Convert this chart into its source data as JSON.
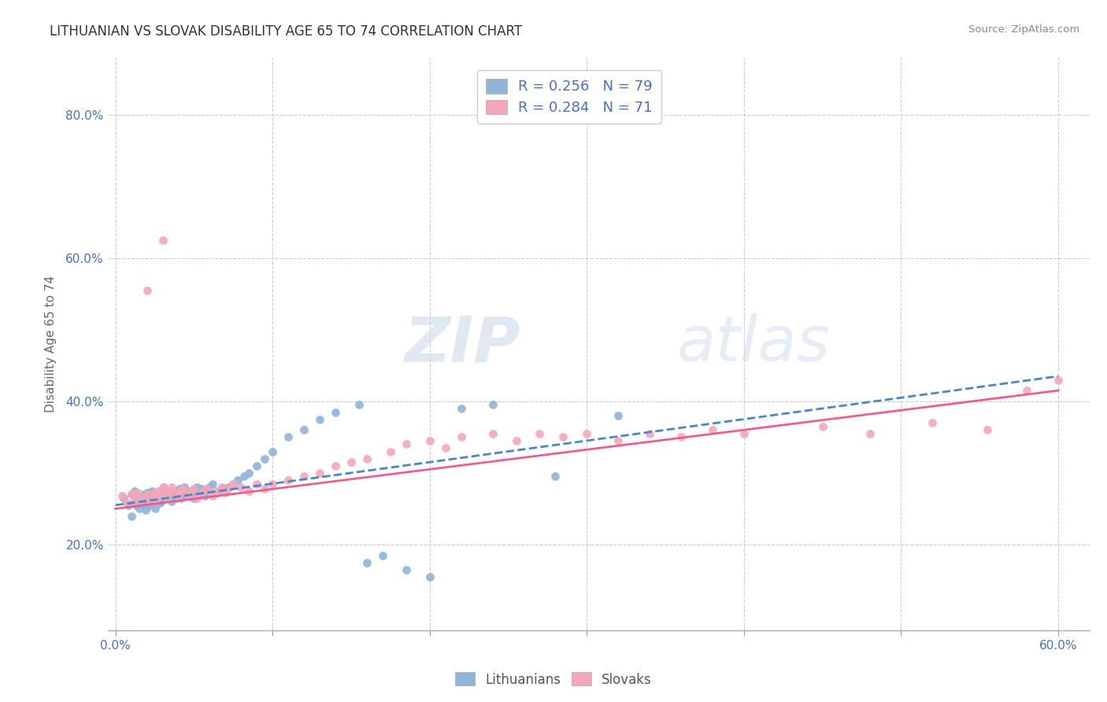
{
  "title": "LITHUANIAN VS SLOVAK DISABILITY AGE 65 TO 74 CORRELATION CHART",
  "source": "Source: ZipAtlas.com",
  "xlabel": "",
  "ylabel": "Disability Age 65 to 74",
  "xlim": [
    -0.005,
    0.62
  ],
  "ylim": [
    0.08,
    0.88
  ],
  "xtick_labels": [
    "0.0%",
    "",
    "",
    "",
    "",
    "",
    "60.0%"
  ],
  "xtick_vals": [
    0.0,
    0.1,
    0.2,
    0.3,
    0.4,
    0.5,
    0.6
  ],
  "ytick_labels": [
    "20.0%",
    "40.0%",
    "60.0%",
    "80.0%"
  ],
  "ytick_vals": [
    0.2,
    0.4,
    0.6,
    0.8
  ],
  "blue_color": "#91b4d9",
  "pink_color": "#f4a7b9",
  "blue_line_color": "#4a86c8",
  "pink_line_color": "#e86090",
  "text_color": "#4472c4",
  "watermark_zip": "ZIP",
  "watermark_atlas": "atlas",
  "blue_trendline": [
    0.0,
    0.255,
    0.6,
    0.435
  ],
  "pink_trendline": [
    0.0,
    0.25,
    0.6,
    0.415
  ],
  "blue_scatter_x": [
    0.005,
    0.008,
    0.01,
    0.01,
    0.012,
    0.012,
    0.013,
    0.015,
    0.015,
    0.016,
    0.018,
    0.018,
    0.019,
    0.019,
    0.02,
    0.02,
    0.021,
    0.022,
    0.022,
    0.023,
    0.023,
    0.024,
    0.025,
    0.025,
    0.026,
    0.027,
    0.028,
    0.028,
    0.029,
    0.03,
    0.031,
    0.032,
    0.033,
    0.034,
    0.035,
    0.036,
    0.037,
    0.038,
    0.039,
    0.04,
    0.041,
    0.042,
    0.043,
    0.044,
    0.045,
    0.046,
    0.048,
    0.05,
    0.052,
    0.053,
    0.055,
    0.057,
    0.058,
    0.06,
    0.062,
    0.065,
    0.068,
    0.07,
    0.072,
    0.075,
    0.078,
    0.082,
    0.085,
    0.09,
    0.095,
    0.1,
    0.11,
    0.12,
    0.13,
    0.14,
    0.155,
    0.16,
    0.17,
    0.185,
    0.2,
    0.22,
    0.24,
    0.28,
    0.32
  ],
  "blue_scatter_y": [
    0.265,
    0.255,
    0.27,
    0.24,
    0.26,
    0.275,
    0.255,
    0.268,
    0.25,
    0.26,
    0.27,
    0.255,
    0.265,
    0.248,
    0.272,
    0.258,
    0.265,
    0.27,
    0.255,
    0.26,
    0.275,
    0.26,
    0.268,
    0.25,
    0.272,
    0.265,
    0.258,
    0.275,
    0.26,
    0.268,
    0.28,
    0.27,
    0.265,
    0.275,
    0.268,
    0.26,
    0.27,
    0.275,
    0.265,
    0.272,
    0.278,
    0.265,
    0.27,
    0.28,
    0.268,
    0.275,
    0.272,
    0.265,
    0.28,
    0.27,
    0.278,
    0.268,
    0.275,
    0.28,
    0.285,
    0.272,
    0.278,
    0.275,
    0.28,
    0.285,
    0.29,
    0.295,
    0.3,
    0.31,
    0.32,
    0.33,
    0.35,
    0.36,
    0.375,
    0.385,
    0.395,
    0.175,
    0.185,
    0.165,
    0.155,
    0.39,
    0.395,
    0.295,
    0.38
  ],
  "pink_scatter_x": [
    0.004,
    0.007,
    0.01,
    0.012,
    0.014,
    0.016,
    0.018,
    0.02,
    0.022,
    0.024,
    0.025,
    0.026,
    0.027,
    0.028,
    0.03,
    0.032,
    0.033,
    0.035,
    0.036,
    0.038,
    0.04,
    0.042,
    0.043,
    0.045,
    0.047,
    0.048,
    0.05,
    0.052,
    0.055,
    0.058,
    0.06,
    0.062,
    0.065,
    0.068,
    0.07,
    0.072,
    0.075,
    0.08,
    0.085,
    0.09,
    0.095,
    0.1,
    0.11,
    0.12,
    0.13,
    0.14,
    0.15,
    0.16,
    0.175,
    0.185,
    0.2,
    0.21,
    0.22,
    0.24,
    0.255,
    0.27,
    0.285,
    0.3,
    0.32,
    0.34,
    0.36,
    0.38,
    0.4,
    0.45,
    0.48,
    0.52,
    0.555,
    0.58,
    0.6,
    0.02,
    0.03
  ],
  "pink_scatter_y": [
    0.268,
    0.258,
    0.27,
    0.26,
    0.272,
    0.262,
    0.265,
    0.27,
    0.26,
    0.268,
    0.272,
    0.265,
    0.275,
    0.268,
    0.28,
    0.27,
    0.265,
    0.275,
    0.28,
    0.272,
    0.268,
    0.275,
    0.278,
    0.272,
    0.268,
    0.275,
    0.278,
    0.265,
    0.272,
    0.278,
    0.275,
    0.268,
    0.275,
    0.28,
    0.272,
    0.278,
    0.285,
    0.28,
    0.275,
    0.285,
    0.278,
    0.285,
    0.29,
    0.295,
    0.3,
    0.31,
    0.315,
    0.32,
    0.33,
    0.34,
    0.345,
    0.335,
    0.35,
    0.355,
    0.345,
    0.355,
    0.35,
    0.355,
    0.345,
    0.355,
    0.35,
    0.36,
    0.355,
    0.365,
    0.355,
    0.37,
    0.36,
    0.415,
    0.43,
    0.555,
    0.625
  ]
}
